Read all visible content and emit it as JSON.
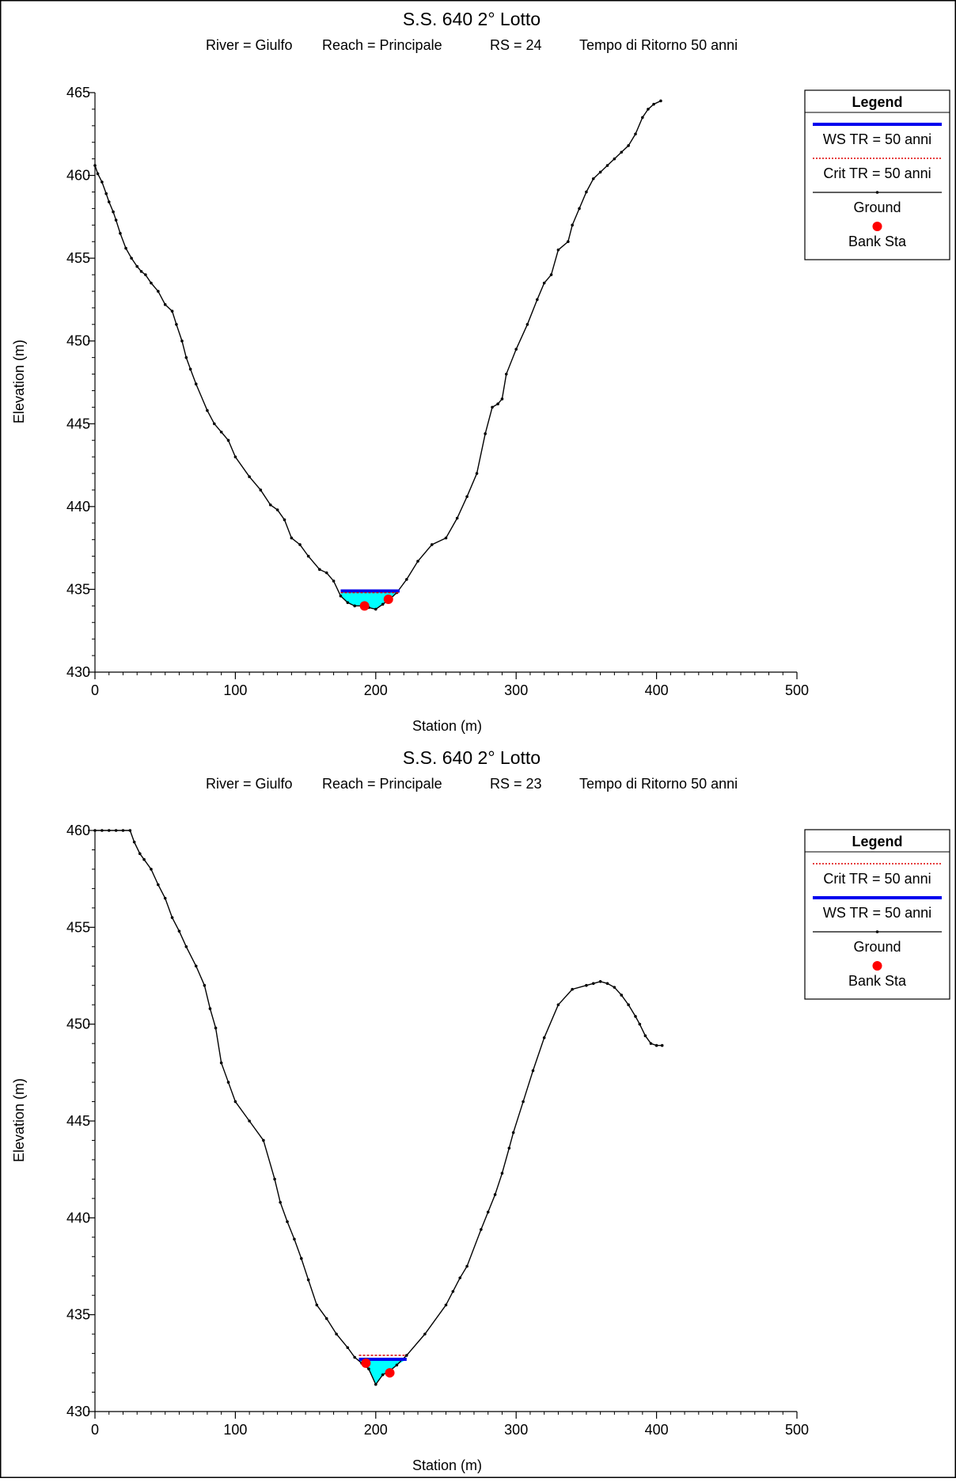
{
  "colors": {
    "ws": "#0000ee",
    "crit": "#dd0000",
    "ground": "#000000",
    "bank": "#ff0000",
    "water": "#00ffff"
  },
  "chart_data": [
    {
      "type": "line",
      "title": "S.S. 640 2° Lotto",
      "subtitle": {
        "river": "River = Giulfo",
        "reach": "Reach = Principale",
        "rs": "RS = 24",
        "tempo": "Tempo di Ritorno 50 anni"
      },
      "xlabel": "Station (m)",
      "ylabel": "Elevation (m)",
      "xlim": [
        0,
        500
      ],
      "ylim": [
        430,
        465
      ],
      "xticks": [
        0,
        100,
        200,
        300,
        400,
        500
      ],
      "yticks": [
        430,
        435,
        440,
        445,
        450,
        455,
        460,
        465
      ],
      "legend": {
        "title": "Legend",
        "placement": "top-right",
        "entries": [
          {
            "key": "ws",
            "label": "WS TR = 50 anni"
          },
          {
            "key": "crit",
            "label": "Crit TR = 50 anni"
          },
          {
            "key": "ground",
            "label": "Ground"
          },
          {
            "key": "bank",
            "label": "Bank Sta"
          }
        ]
      },
      "water_surface": {
        "elevation": 434.9,
        "x_start": 175,
        "x_end": 217
      },
      "critical": {
        "elevation": 434.8,
        "x_start": 175,
        "x_end": 217
      },
      "bank_stations": [
        {
          "x": 192,
          "y": 434.0
        },
        {
          "x": 209,
          "y": 434.4
        }
      ],
      "ground": {
        "x": [
          0,
          2,
          5,
          8,
          10,
          13,
          15,
          18,
          22,
          26,
          30,
          33,
          36,
          40,
          45,
          50,
          55,
          58,
          62,
          65,
          68,
          72,
          80,
          85,
          90,
          95,
          100,
          110,
          118,
          125,
          130,
          135,
          140,
          146,
          152,
          160,
          165,
          170,
          175,
          180,
          185,
          190,
          195,
          200,
          205,
          210,
          215,
          222,
          230,
          240,
          250,
          258,
          265,
          272,
          278,
          283,
          287,
          290,
          293,
          300,
          308,
          315,
          320,
          325,
          330,
          337,
          340,
          345,
          350,
          355,
          360,
          365,
          370,
          375,
          380,
          385,
          390,
          394,
          398,
          403
        ],
        "y": [
          460.6,
          460.1,
          459.6,
          458.9,
          458.4,
          457.8,
          457.3,
          456.5,
          455.6,
          455.0,
          454.5,
          454.2,
          454.0,
          453.5,
          453.0,
          452.2,
          451.8,
          451.0,
          450.0,
          449.0,
          448.3,
          447.4,
          445.8,
          445.0,
          444.5,
          444.0,
          443.0,
          441.8,
          441.0,
          440.1,
          439.8,
          439.2,
          438.1,
          437.7,
          437.0,
          436.2,
          436.0,
          435.5,
          434.6,
          434.2,
          434.0,
          434.0,
          433.9,
          433.8,
          434.1,
          434.4,
          434.8,
          435.6,
          436.7,
          437.7,
          438.1,
          439.3,
          440.6,
          442.0,
          444.4,
          446.0,
          446.2,
          446.5,
          448.0,
          449.5,
          451.0,
          452.5,
          453.5,
          454.0,
          455.5,
          456.0,
          457.0,
          458.0,
          459.0,
          459.8,
          460.2,
          460.6,
          461.0,
          461.4,
          461.8,
          462.5,
          463.5,
          464.0,
          464.3,
          464.5
        ]
      }
    },
    {
      "type": "line",
      "title": "S.S. 640 2° Lotto",
      "subtitle": {
        "river": "River = Giulfo",
        "reach": "Reach = Principale",
        "rs": "RS = 23",
        "tempo": "Tempo di Ritorno 50 anni"
      },
      "xlabel": "Station (m)",
      "ylabel": "Elevation (m)",
      "xlim": [
        0,
        500
      ],
      "ylim": [
        430,
        460
      ],
      "xticks": [
        0,
        100,
        200,
        300,
        400,
        500
      ],
      "yticks": [
        430,
        435,
        440,
        445,
        450,
        455,
        460
      ],
      "legend": {
        "title": "Legend",
        "placement": "top-right",
        "entries": [
          {
            "key": "crit",
            "label": "Crit TR = 50 anni"
          },
          {
            "key": "ws",
            "label": "WS TR = 50 anni"
          },
          {
            "key": "ground",
            "label": "Ground"
          },
          {
            "key": "bank",
            "label": "Bank Sta"
          }
        ]
      },
      "water_surface": {
        "elevation": 432.7,
        "x_start": 188,
        "x_end": 222
      },
      "critical": {
        "elevation": 432.9,
        "x_start": 188,
        "x_end": 222
      },
      "bank_stations": [
        {
          "x": 193,
          "y": 432.5
        },
        {
          "x": 210,
          "y": 432.0
        }
      ],
      "ground": {
        "x": [
          0,
          5,
          10,
          15,
          20,
          25,
          28,
          32,
          35,
          40,
          45,
          50,
          55,
          60,
          65,
          72,
          78,
          82,
          86,
          90,
          95,
          100,
          110,
          120,
          128,
          132,
          137,
          142,
          147,
          152,
          158,
          165,
          172,
          180,
          185,
          190,
          195,
          200,
          205,
          210,
          215,
          222,
          235,
          250,
          255,
          260,
          265,
          275,
          280,
          285,
          290,
          295,
          298,
          305,
          312,
          320,
          330,
          340,
          350,
          355,
          360,
          365,
          370,
          375,
          380,
          385,
          388,
          392,
          396,
          400,
          404
        ],
        "y": [
          460.0,
          460.0,
          460.0,
          460.0,
          460.0,
          460.0,
          459.4,
          458.8,
          458.5,
          458.0,
          457.2,
          456.5,
          455.5,
          454.8,
          454.0,
          453.0,
          452.0,
          450.8,
          449.8,
          448.0,
          447.0,
          446.0,
          445.0,
          444.0,
          442.0,
          440.8,
          439.8,
          438.9,
          437.9,
          436.8,
          435.5,
          434.8,
          434.0,
          433.3,
          432.8,
          432.5,
          432.2,
          431.4,
          431.9,
          432.1,
          432.4,
          432.9,
          434.0,
          435.5,
          436.2,
          436.9,
          437.5,
          439.4,
          440.3,
          441.2,
          442.3,
          443.6,
          444.4,
          446.0,
          447.6,
          449.3,
          451.0,
          451.8,
          452.0,
          452.1,
          452.2,
          452.1,
          451.9,
          451.5,
          451.0,
          450.4,
          450.0,
          449.4,
          449.0,
          448.9,
          448.9
        ]
      }
    }
  ]
}
